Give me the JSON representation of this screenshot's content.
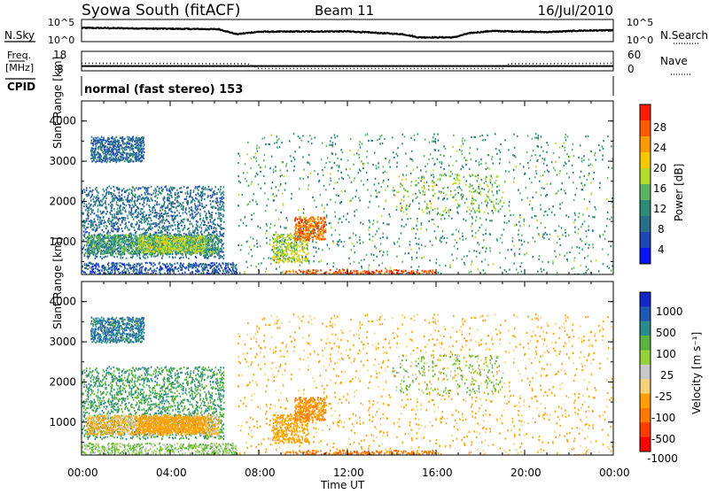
{
  "header": {
    "station": "Syowa South (fitACF)",
    "beam": "Beam 11",
    "date": "16/Jul/2010"
  },
  "noise_panel": {
    "left_label": "N.Sky",
    "right_label": "N.Search",
    "left_ticks": [
      "10^5",
      "10^0"
    ],
    "right_ticks": [
      "10^5",
      "10^0"
    ]
  },
  "freq_panel": {
    "left_label_1": "Freq.",
    "left_label_2": "[MHz]",
    "right_label": "Nave",
    "left_ticks": [
      "18",
      "8"
    ],
    "right_ticks": [
      "60",
      "0"
    ]
  },
  "cpid": {
    "label": "CPID",
    "mode": "normal (fast stereo) 153"
  },
  "x_axis": {
    "label": "Time UT",
    "ticks": [
      "00:00",
      "04:00",
      "08:00",
      "12:00",
      "16:00",
      "20:00",
      "00:00"
    ]
  },
  "power_panel": {
    "ylabel": "Slant Range [km]",
    "yticks": [
      "4000",
      "3000",
      "2000",
      "1000"
    ],
    "cbar_label": "Power [dB]",
    "cbar_ticks": [
      "28",
      "24",
      "20",
      "16",
      "12",
      "8",
      "4"
    ],
    "cbar_colors": [
      "#ff1e00",
      "#ff5a00",
      "#ff9b00",
      "#f5c800",
      "#b4dc28",
      "#5ab464",
      "#2d8c78",
      "#286e8c",
      "#1e46b4",
      "#0a14f0"
    ]
  },
  "velocity_panel": {
    "ylabel": "Slant Range [km]",
    "yticks": [
      "4000",
      "3000",
      "2000",
      "1000"
    ],
    "cbar_label": "Velocity [m s⁻¹]",
    "cbar_ticks": [
      "1000",
      "500",
      "100",
      "25",
      "-25",
      "-100",
      "-500",
      "-1000"
    ],
    "cbar_colors": [
      "#1428c8",
      "#1e5ab4",
      "#288c8c",
      "#5ab43c",
      "#96d23c",
      "#c8c8c8",
      "#f5d278",
      "#ffa000",
      "#ff7800",
      "#ff3c00",
      "#ff0000"
    ]
  },
  "chart_data": {
    "type": "heatmap",
    "title": "Syowa South (fitACF)",
    "xlabel": "Time UT",
    "ylabel": "Slant Range [km]",
    "xlim": [
      "00:00",
      "24:00"
    ],
    "ylim": [
      180,
      4500
    ],
    "power_clim_db": [
      0,
      30
    ],
    "velocity_clim": [
      -1000,
      1000
    ],
    "noise_sky_profile": [
      {
        "t": 0.0,
        "log10": 3.4
      },
      {
        "t": 3.0,
        "log10": 3.2
      },
      {
        "t": 6.2,
        "log10": 3.0
      },
      {
        "t": 7.0,
        "log10": 1.6
      },
      {
        "t": 8.0,
        "log10": 2.3
      },
      {
        "t": 12.0,
        "log10": 2.4
      },
      {
        "t": 14.5,
        "log10": 1.6
      },
      {
        "t": 15.2,
        "log10": 0.7
      },
      {
        "t": 16.8,
        "log10": 0.7
      },
      {
        "t": 17.5,
        "log10": 1.9
      },
      {
        "t": 18.5,
        "log10": 2.5
      },
      {
        "t": 21.0,
        "log10": 2.2
      },
      {
        "t": 22.5,
        "log10": 2.6
      },
      {
        "t": 24.0,
        "log10": 2.7
      }
    ],
    "freq_mhz": 9.9,
    "nave_profile": [
      {
        "t": 0.0,
        "nave": 22
      },
      {
        "t": 7.5,
        "nave": 20
      },
      {
        "t": 8.0,
        "nave": 2
      },
      {
        "t": 19.0,
        "nave": 2
      },
      {
        "t": 19.3,
        "nave": 20
      },
      {
        "t": 24.0,
        "nave": 22
      }
    ],
    "echo_regions": [
      {
        "t0": 0.4,
        "t1": 2.8,
        "r0": 3000,
        "r1": 3650,
        "density": 0.55,
        "power_db": 7,
        "velocity": 600
      },
      {
        "t0": 0.0,
        "t1": 6.4,
        "r0": 600,
        "r1": 2400,
        "density": 0.25,
        "power_db": 8,
        "velocity": 300
      },
      {
        "t0": 0.2,
        "t1": 6.2,
        "r0": 700,
        "r1": 1200,
        "density": 0.55,
        "power_db": 12,
        "velocity": -60
      },
      {
        "t0": 2.5,
        "t1": 5.6,
        "r0": 750,
        "r1": 1150,
        "density": 0.6,
        "power_db": 16,
        "velocity": -150
      },
      {
        "t0": 0.0,
        "t1": 7.0,
        "r0": 180,
        "r1": 500,
        "density": 0.35,
        "power_db": 6,
        "velocity": 50
      },
      {
        "t0": 8.6,
        "t1": 10.2,
        "r0": 500,
        "r1": 1200,
        "density": 0.4,
        "power_db": 17,
        "velocity": -120
      },
      {
        "t0": 9.6,
        "t1": 11.0,
        "r0": 1050,
        "r1": 1650,
        "density": 0.55,
        "power_db": 25,
        "velocity": -300
      },
      {
        "t0": 7.0,
        "t1": 24.0,
        "r0": 200,
        "r1": 3700,
        "density": 0.035,
        "power_db": 12,
        "velocity": -80
      },
      {
        "t0": 14.0,
        "t1": 19.0,
        "r0": 1700,
        "r1": 2700,
        "density": 0.07,
        "power_db": 15,
        "velocity": 60
      },
      {
        "t0": 9.0,
        "t1": 16.0,
        "r0": 180,
        "r1": 300,
        "density": 0.4,
        "power_db": 26,
        "velocity": -500
      }
    ]
  }
}
